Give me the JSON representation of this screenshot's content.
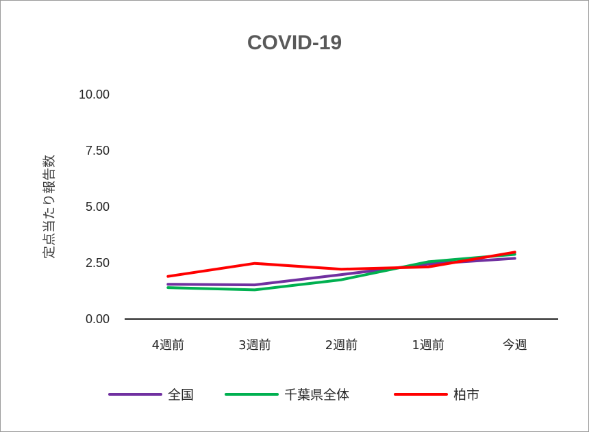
{
  "chart_data": {
    "type": "line",
    "title": "COVID-19",
    "xlabel": "",
    "ylabel": "定点当たり報告数",
    "categories": [
      "4週前",
      "3週前",
      "2週前",
      "1週前",
      "今週"
    ],
    "ylim": [
      0,
      10
    ],
    "yticks": [
      "0.00",
      "2.50",
      "5.00",
      "7.50",
      "10.00"
    ],
    "grid": false,
    "legend": "bottom",
    "series": [
      {
        "name": "全国",
        "color": "#7030a0",
        "values": [
          1.55,
          1.52,
          1.98,
          2.45,
          2.7
        ]
      },
      {
        "name": "千葉県全体",
        "color": "#00b050",
        "values": [
          1.4,
          1.3,
          1.75,
          2.55,
          2.88
        ]
      },
      {
        "name": "柏市",
        "color": "#ff0000",
        "values": [
          1.9,
          2.48,
          2.22,
          2.32,
          2.98
        ]
      }
    ]
  }
}
